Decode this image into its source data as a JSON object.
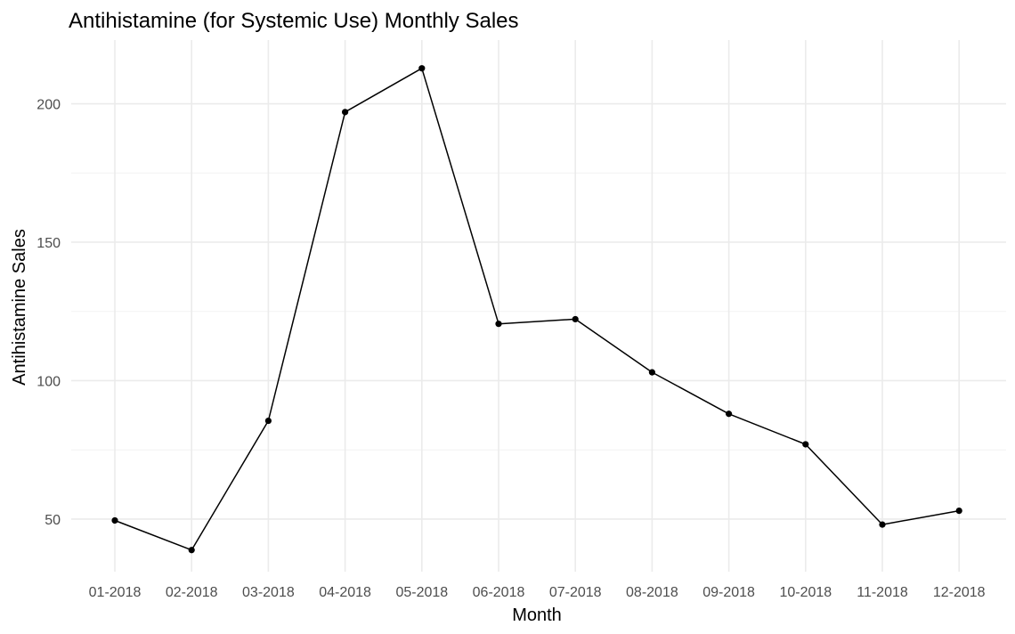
{
  "chart_data": {
    "type": "line",
    "title": "Antihistamine (for Systemic Use) Monthly Sales",
    "xlabel": "Month",
    "ylabel": "Antihistamine Sales",
    "categories": [
      "01-2018",
      "02-2018",
      "03-2018",
      "04-2018",
      "05-2018",
      "06-2018",
      "07-2018",
      "08-2018",
      "09-2018",
      "10-2018",
      "11-2018",
      "12-2018"
    ],
    "values": [
      49.5,
      38.8,
      85.5,
      197.0,
      212.8,
      120.5,
      122.2,
      103.0,
      88.0,
      77.0,
      48.0,
      53.0
    ],
    "ylim": [
      31,
      223
    ],
    "y_ticks": [
      50,
      100,
      150,
      200
    ],
    "y_minor_ticks": [
      75,
      125,
      175
    ],
    "grid": true,
    "legend": "none",
    "colors": {
      "line": "#000000",
      "point": "#000000",
      "grid_major": "#ebebeb",
      "grid_minor": "#f2f2f2",
      "tick_text": "#4d4d4d",
      "background": "#ffffff"
    }
  }
}
